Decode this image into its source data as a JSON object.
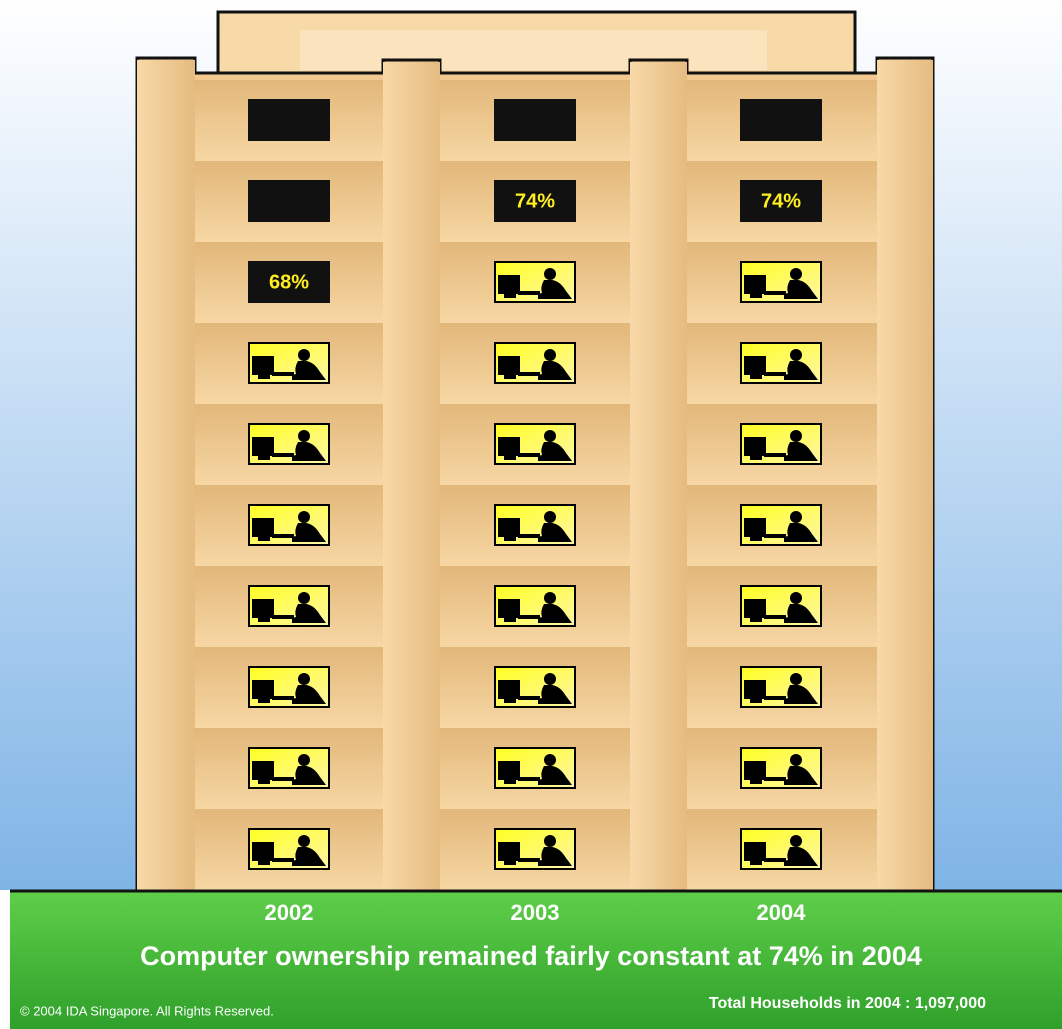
{
  "chart_data": {
    "type": "pictogram",
    "title": "Computer ownership remained fairly constant at 74% in 2004",
    "categories": [
      "2002",
      "2003",
      "2004"
    ],
    "values": [
      68,
      74,
      74
    ],
    "value_labels": [
      "68%",
      "74%",
      "74%"
    ],
    "ylim": [
      0,
      100
    ],
    "note": "Total Households in 2004 : 1,097,000",
    "copyright": "© 2004 IDA Singapore. All Rights Reserved."
  }
}
